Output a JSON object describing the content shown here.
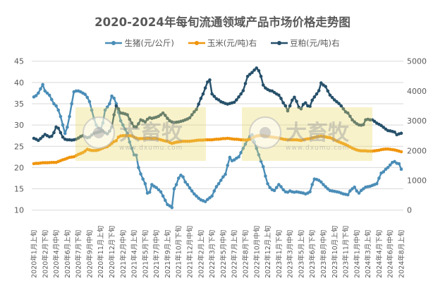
{
  "chart_data": {
    "type": "line",
    "title": "2020-2024年每旬流通领域产品市场价格走势图",
    "legend_position": "top",
    "grid": true,
    "x_tick_labels": [
      "2020年1月上旬",
      "2020年2月下旬",
      "2020年4月中旬",
      "2020年6月上旬",
      "2020年7月下旬",
      "2020年9月中旬",
      "2020年11月上旬",
      "2020年12月下旬",
      "2021年2月中旬",
      "2021年4月上旬",
      "2021年5月下旬",
      "2021年7月中旬",
      "2021年9月上旬",
      "2021年10月下旬",
      "2021年12月中旬",
      "2022年2月上旬",
      "2022年3月下旬",
      "2022年5月中旬",
      "2022年7月上旬",
      "2022年8月下旬",
      "2022年10月中旬",
      "2022年12月上旬",
      "2023年1月下旬",
      "2023年3月中旬",
      "2023年5月上旬",
      "2023年6月下旬",
      "2023年8月中旬",
      "2023年10月上旬",
      "2023年11月下旬",
      "2024年1月中旬",
      "2024年3月上旬",
      "2024年4月下旬",
      "2024年6月中旬",
      "2024年8月上旬"
    ],
    "x_tick_every": 5,
    "y_left": {
      "min": 10,
      "max": 45,
      "step": 5,
      "ticks": [
        "10",
        "15",
        "20",
        "25",
        "30",
        "35",
        "40",
        "45"
      ]
    },
    "y_right": {
      "min": 0,
      "max": 5000,
      "step": 1000,
      "ticks": [
        "0",
        "1000",
        "2000",
        "3000",
        "4000",
        "5000"
      ]
    },
    "series": [
      {
        "name": "生猪(元/公斤)",
        "axis": "left",
        "color": "#4a8db7",
        "values": [
          36.6,
          36.9,
          37.5,
          38.5,
          39.5,
          38,
          37.5,
          37,
          36,
          35,
          34.5,
          33.5,
          32,
          30,
          28,
          29.5,
          32,
          35,
          37.8,
          38,
          38,
          37.8,
          37.5,
          37.2,
          36.5,
          35.5,
          33.5,
          31.5,
          30,
          29.3,
          29,
          30.5,
          33.5,
          34.2,
          35,
          36.8,
          36.3,
          35,
          33,
          31,
          30,
          29,
          28,
          26,
          24.5,
          23,
          22.9,
          20,
          18.5,
          17.3,
          16.2,
          14,
          14.2,
          16,
          15.6,
          15.3,
          14.8,
          14.3,
          13.3,
          12.3,
          11.3,
          11,
          10.6,
          15,
          16,
          17.5,
          18.2,
          17.8,
          16.6,
          16,
          15.2,
          14.5,
          13.8,
          13.3,
          12.8,
          12.4,
          12.2,
          12,
          12.5,
          12.9,
          13.3,
          14.5,
          15.5,
          16.2,
          17,
          17.8,
          18.4,
          20.5,
          22.4,
          21.6,
          21.8,
          22.2,
          22.5,
          23.5,
          24.5,
          25.5,
          26.5,
          27.3,
          27.7,
          26,
          24.5,
          23,
          21.5,
          20.2,
          18,
          16.2,
          15.3,
          14.8,
          14.6,
          15.3,
          16,
          15.5,
          14.8,
          14.3,
          14.2,
          14.5,
          14.3,
          14.2,
          14.3,
          14.2,
          14.1,
          14,
          13.8,
          14,
          14.3,
          16,
          17.3,
          17.2,
          17,
          16.6,
          16,
          15.5,
          15,
          14.6,
          14.5,
          14.4,
          14.3,
          14.2,
          14,
          13.8,
          13.7,
          13.6,
          14.5,
          15,
          15.4,
          14.5,
          14,
          14.6,
          15,
          15.4,
          15.5,
          15.6,
          15.8,
          16,
          16.2,
          17.5,
          18.7,
          19,
          19.6,
          20,
          20.6,
          21.2,
          21.4,
          21,
          20.9,
          19.6
        ]
      },
      {
        "name": "玉米(元/吨)右",
        "axis": "right",
        "color": "#f0950c",
        "values": [
          1560,
          1570,
          1570,
          1580,
          1590,
          1590,
          1590,
          1595,
          1600,
          1600,
          1600,
          1630,
          1660,
          1690,
          1710,
          1740,
          1770,
          1780,
          1790,
          1830,
          1870,
          1900,
          1930,
          1980,
          2040,
          2020,
          2000,
          2000,
          2000,
          2020,
          2050,
          2080,
          2110,
          2130,
          2180,
          2240,
          2300,
          2330,
          2450,
          2490,
          2500,
          2500,
          2500,
          2500,
          2490,
          2450,
          2420,
          2400,
          2400,
          2400,
          2400,
          2410,
          2410,
          2400,
          2400,
          2400,
          2380,
          2360,
          2340,
          2320,
          2310,
          2270,
          2240,
          2260,
          2280,
          2290,
          2300,
          2310,
          2310,
          2310,
          2310,
          2320,
          2330,
          2340,
          2350,
          2350,
          2350,
          2360,
          2360,
          2360,
          2360,
          2370,
          2380,
          2380,
          2390,
          2400,
          2400,
          2410,
          2400,
          2390,
          2380,
          2380,
          2370,
          2360,
          2360,
          2350,
          2360,
          2380,
          2420,
          2460,
          2490,
          2500,
          2500,
          2500,
          2490,
          2470,
          2460,
          2450,
          2440,
          2430,
          2420,
          2400,
          2380,
          2370,
          2360,
          2360,
          2360,
          2360,
          2360,
          2350,
          2340,
          2360,
          2380,
          2390,
          2400,
          2420,
          2440,
          2460,
          2470,
          2480,
          2470,
          2460,
          2440,
          2430,
          2400,
          2360,
          2320,
          2290,
          2260,
          2230,
          2200,
          2160,
          2120,
          2080,
          2050,
          2020,
          2000,
          1990,
          1990,
          1990,
          1980,
          1980,
          1980,
          1990,
          2000,
          2010,
          2030,
          2040,
          2050,
          2050,
          2040,
          2030,
          2020,
          2000,
          1980,
          1960
        ]
      },
      {
        "name": "豆粕(元/吨)右",
        "axis": "right",
        "color": "#26506a",
        "values": [
          2410,
          2380,
          2340,
          2400,
          2470,
          2540,
          2500,
          2460,
          2480,
          2600,
          2790,
          2750,
          2600,
          2450,
          2380,
          2360,
          2360,
          2350,
          2360,
          2380,
          2420,
          2470,
          2500,
          2460,
          2430,
          2450,
          2520,
          2580,
          2600,
          2620,
          2640,
          2660,
          2600,
          2560,
          2650,
          2790,
          3200,
          3500,
          3400,
          3260,
          3250,
          3230,
          3200,
          3050,
          2920,
          2800,
          2790,
          2900,
          3030,
          3000,
          2960,
          3050,
          3100,
          3080,
          3100,
          3120,
          3150,
          3200,
          3260,
          3180,
          3080,
          3000,
          2960,
          2940,
          2950,
          2960,
          2980,
          3000,
          3030,
          3060,
          3100,
          3200,
          3300,
          3380,
          3560,
          3750,
          3900,
          4100,
          4300,
          4370,
          3900,
          3820,
          3740,
          3700,
          3640,
          3610,
          3580,
          3560,
          3580,
          3600,
          3620,
          3700,
          3800,
          3900,
          4010,
          4250,
          4490,
          4560,
          4620,
          4700,
          4770,
          4680,
          4490,
          4200,
          4100,
          4050,
          4010,
          4000,
          3950,
          3900,
          3860,
          3750,
          3600,
          3500,
          3330,
          3500,
          3690,
          3790,
          3650,
          3450,
          3400,
          3550,
          3600,
          3500,
          3480,
          3690,
          3800,
          3900,
          4010,
          4270,
          4200,
          4150,
          4000,
          3860,
          3780,
          3700,
          3640,
          3580,
          3500,
          3400,
          3300,
          3260,
          3150,
          3030,
          2960,
          2900,
          2860,
          2850,
          2870,
          3030,
          3050,
          3030,
          3030,
          2980,
          2920,
          2880,
          2840,
          2780,
          2720,
          2670,
          2660,
          2640,
          2620,
          2530,
          2560,
          2580
        ]
      }
    ],
    "watermark": {
      "brand": "大畜牧",
      "url": "www.dxumu.com"
    }
  }
}
